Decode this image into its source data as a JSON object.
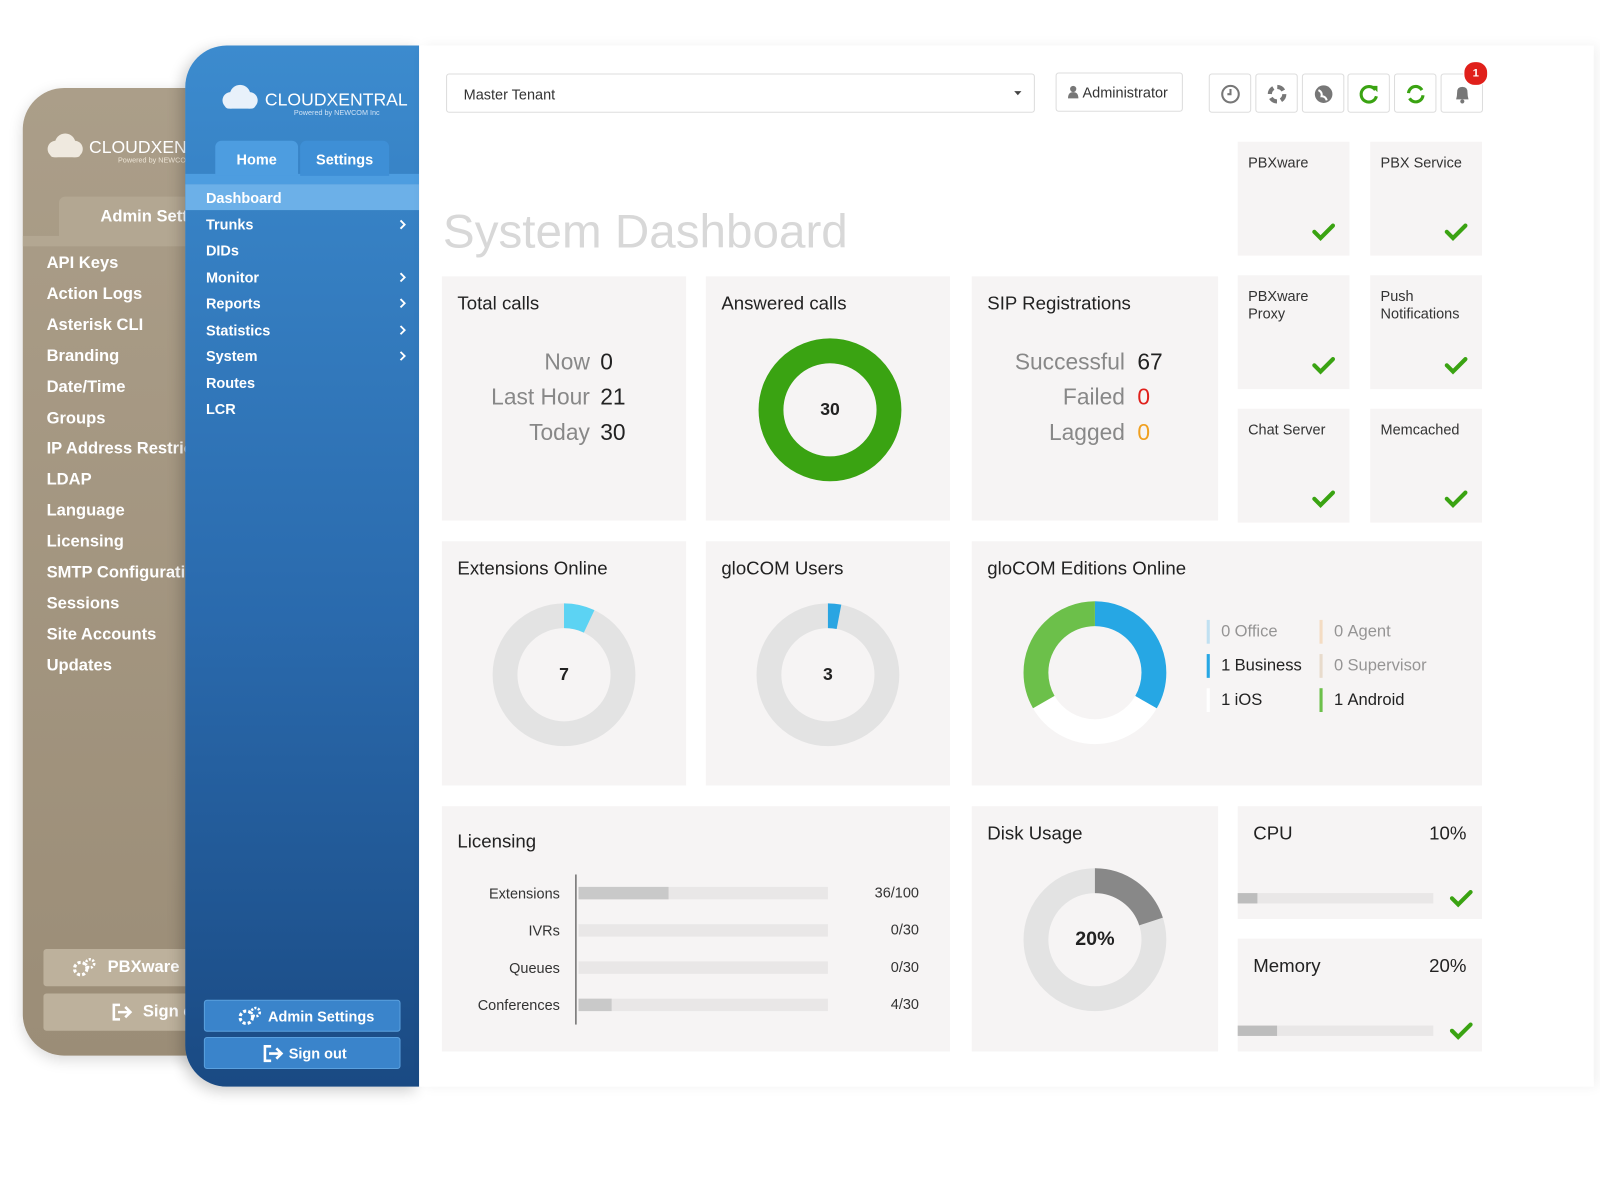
{
  "back_panel": {
    "logo": "CLOUDXENTRAL",
    "logo_sub": "Powered by NEWCOM Inc",
    "tab": "Admin Settings",
    "menu": [
      "API Keys",
      "Action Logs",
      "Asterisk CLI",
      "Branding",
      "Date/Time",
      "Groups",
      "IP Address Restrictions",
      "LDAP",
      "Language",
      "Licensing",
      "SMTP Configuration",
      "Sessions",
      "Site Accounts",
      "Updates"
    ],
    "buttons": [
      "PBXware",
      "Sign out"
    ]
  },
  "sidebar": {
    "logo": "CLOUDXENTRAL",
    "logo_sub": "Powered by NEWCOM Inc",
    "tabs": [
      "Home",
      "Settings"
    ],
    "menu": [
      {
        "label": "Dashboard",
        "active": true,
        "submenu": false
      },
      {
        "label": "Trunks",
        "active": false,
        "submenu": true
      },
      {
        "label": "DIDs",
        "active": false,
        "submenu": false
      },
      {
        "label": "Monitor",
        "active": false,
        "submenu": true
      },
      {
        "label": "Reports",
        "active": false,
        "submenu": true
      },
      {
        "label": "Statistics",
        "active": false,
        "submenu": true
      },
      {
        "label": "System",
        "active": false,
        "submenu": true
      },
      {
        "label": "Routes",
        "active": false,
        "submenu": false
      },
      {
        "label": "LCR",
        "active": false,
        "submenu": false
      }
    ],
    "buttons": [
      "Admin Settings",
      "Sign out"
    ]
  },
  "topbar": {
    "tenant": "Master Tenant",
    "user": "Administrator",
    "notifications": 1
  },
  "title": "System Dashboard",
  "services": [
    {
      "name": "PBXware",
      "ok": true
    },
    {
      "name": "PBX Service",
      "ok": true
    },
    {
      "name": "PBXware Proxy",
      "ok": true
    },
    {
      "name": "Push Notifications",
      "ok": true
    },
    {
      "name": "Chat Server",
      "ok": true
    },
    {
      "name": "Memcached",
      "ok": true
    }
  ],
  "total_calls": {
    "title": "Total calls",
    "rows": [
      {
        "label": "Now",
        "value": 0
      },
      {
        "label": "Last Hour",
        "value": 21
      },
      {
        "label": "Today",
        "value": 30
      }
    ]
  },
  "answered_calls": {
    "title": "Answered calls",
    "value": 30,
    "color": "#3aa312"
  },
  "sip": {
    "title": "SIP Registrations",
    "rows": [
      {
        "label": "Successful",
        "value": 67,
        "color": "#222222"
      },
      {
        "label": "Failed",
        "value": 0,
        "color": "#e0201b"
      },
      {
        "label": "Lagged",
        "value": 0,
        "color": "#f0a020"
      }
    ]
  },
  "extensions_online": {
    "title": "Extensions Online",
    "value": 7,
    "color": "#5cd3f3"
  },
  "glocom_users": {
    "title": "gloCOM Users",
    "value": 3,
    "color": "#2aa5e2"
  },
  "glocom_editions": {
    "title": "gloCOM Editions Online",
    "editions": [
      {
        "name": "Office",
        "value": 0,
        "color": "#7fc8ee"
      },
      {
        "name": "Agent",
        "value": 0,
        "color": "#f2c08a"
      },
      {
        "name": "Business",
        "value": 1,
        "color": "#26a7e4"
      },
      {
        "name": "Supervisor",
        "value": 0,
        "color": "#d8bf9c"
      },
      {
        "name": "iOS",
        "value": 1,
        "color": "#ffffff"
      },
      {
        "name": "Android",
        "value": 1,
        "color": "#6cc04a"
      }
    ]
  },
  "licensing": {
    "title": "Licensing",
    "items": [
      {
        "name": "Extensions",
        "used": 36,
        "total": 100,
        "label": "36/100"
      },
      {
        "name": "IVRs",
        "used": 0,
        "total": 30,
        "label": "0/30"
      },
      {
        "name": "Queues",
        "used": 0,
        "total": 30,
        "label": "0/30"
      },
      {
        "name": "Conferences",
        "used": 4,
        "total": 30,
        "label": "4/30"
      }
    ]
  },
  "disk": {
    "title": "Disk Usage",
    "value": 20,
    "label": "20%"
  },
  "cpu": {
    "title": "CPU",
    "value": 10,
    "label": "10%"
  },
  "memory": {
    "title": "Memory",
    "value": 20,
    "label": "20%"
  }
}
